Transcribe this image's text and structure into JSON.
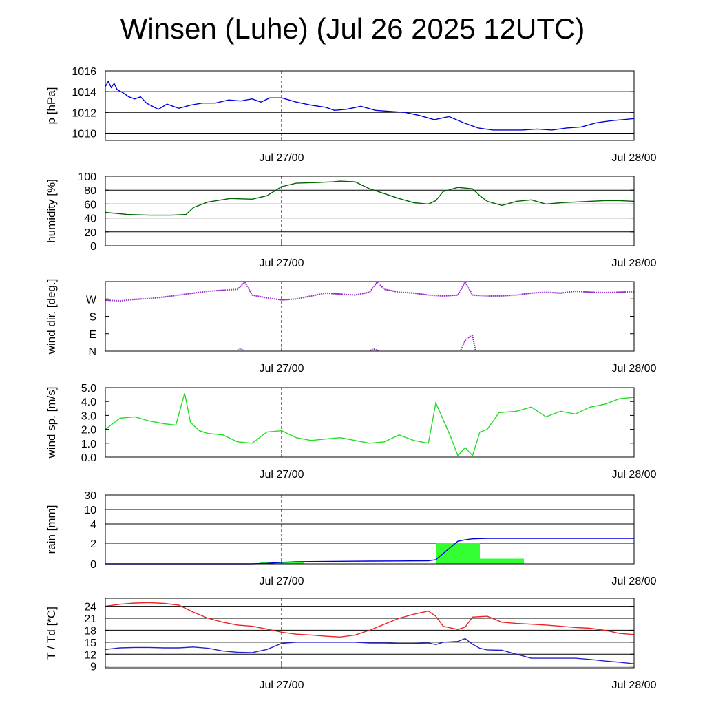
{
  "title": "Winsen (Luhe) (Jul 26 2025 12UTC)",
  "chart_data": [
    {
      "id": "pressure",
      "type": "line",
      "ylabel": "p [hPa]",
      "x_unit": "hours since Jul 26 12UTC",
      "xlim": [
        0,
        36
      ],
      "ylim": [
        1009.3,
        1016
      ],
      "yticks": [
        1010,
        1012,
        1014,
        1016
      ],
      "ytick_labels": [
        "1010",
        "1012",
        "1014",
        "1016"
      ],
      "grid_y": [
        1010,
        1012,
        1014,
        1016
      ],
      "xticks": [
        12,
        36
      ],
      "xtick_labels": [
        "Jul 27/00",
        "Jul 28/00"
      ],
      "series": [
        {
          "color": "#0000dd",
          "x": [
            0,
            0.2,
            0.4,
            0.6,
            0.8,
            1.2,
            1.6,
            2.0,
            2.4,
            2.8,
            3.2,
            3.6,
            4.2,
            5.0,
            5.8,
            6.6,
            7.5,
            8.4,
            9.2,
            10.0,
            10.6,
            11.2,
            12.0,
            13.0,
            14.0,
            15.0,
            15.6,
            16.4,
            17.4,
            18.4,
            19.4,
            20.4,
            21.4,
            22.4,
            23.4,
            24.4,
            25.4,
            26.4,
            27.4,
            28.4,
            29.4,
            30.4,
            31.4,
            32.4,
            33.4,
            34.4,
            35.2,
            36
          ],
          "y": [
            1014.5,
            1015.0,
            1014.4,
            1014.8,
            1014.2,
            1013.9,
            1013.5,
            1013.3,
            1013.5,
            1012.9,
            1012.6,
            1012.3,
            1012.8,
            1012.4,
            1012.7,
            1012.9,
            1012.9,
            1013.2,
            1013.1,
            1013.3,
            1013.0,
            1013.4,
            1013.4,
            1013.0,
            1012.7,
            1012.5,
            1012.2,
            1012.3,
            1012.6,
            1012.2,
            1012.1,
            1012.0,
            1011.7,
            1011.3,
            1011.6,
            1011.0,
            1010.5,
            1010.3,
            1010.3,
            1010.3,
            1010.4,
            1010.3,
            1010.5,
            1010.6,
            1011.0,
            1011.2,
            1011.3,
            1011.4
          ]
        }
      ]
    },
    {
      "id": "humidity",
      "type": "line",
      "ylabel": "humidity [%]",
      "x_unit": "hours since Jul 26 12UTC",
      "xlim": [
        0,
        36
      ],
      "ylim": [
        0,
        100
      ],
      "yticks": [
        0,
        20,
        40,
        60,
        80,
        100
      ],
      "ytick_labels": [
        "0",
        "20",
        "40",
        "60",
        "80",
        "100"
      ],
      "grid_y": [
        0,
        20,
        40,
        60,
        80,
        100
      ],
      "xticks": [
        12,
        36
      ],
      "xtick_labels": [
        "Jul 27/00",
        "Jul 28/00"
      ],
      "series": [
        {
          "color": "#006400",
          "x": [
            0,
            1.5,
            3.0,
            4.5,
            5.5,
            6.0,
            7.0,
            8.5,
            10.0,
            11.0,
            12.0,
            13.0,
            14.5,
            15.5,
            16.0,
            17.0,
            18.0,
            19.0,
            20.0,
            21.0,
            22.0,
            22.5,
            23.0,
            24.0,
            25.0,
            25.5,
            26.0,
            27.0,
            28.0,
            29.0,
            30.0,
            31.0,
            32.0,
            33.0,
            34.0,
            35.0,
            36
          ],
          "y": [
            48,
            45,
            44,
            44,
            45,
            55,
            63,
            68,
            67,
            72,
            85,
            90,
            91,
            92,
            93,
            92,
            82,
            75,
            68,
            62,
            60,
            65,
            78,
            84,
            82,
            72,
            64,
            58,
            64,
            66,
            60,
            62,
            63,
            64,
            65,
            65,
            64
          ]
        }
      ]
    },
    {
      "id": "wind-direction",
      "type": "scatter",
      "ylabel": "wind dir. [deg.]",
      "x_unit": "hours since Jul 26 12UTC",
      "xlim": [
        0,
        36
      ],
      "ylim": [
        0,
        360
      ],
      "yticks": [
        0,
        90,
        180,
        270
      ],
      "ytick_labels": [
        "N",
        "E",
        "S",
        "W"
      ],
      "grid_y": [],
      "xticks": [
        12,
        36
      ],
      "xtick_labels": [
        "Jul 27/00",
        "Jul 28/00"
      ],
      "series": [
        {
          "color": "#9932cc",
          "segments": [
            {
              "x": [
                0,
                1,
                2,
                3,
                4,
                5,
                6,
                7,
                8,
                9,
                9.5
              ],
              "y": [
                264,
                260,
                268,
                272,
                280,
                290,
                300,
                310,
                315,
                320,
                358
              ]
            },
            {
              "x": [
                9.5,
                10,
                11,
                12,
                13,
                14,
                15,
                16,
                17,
                18,
                18.5
              ],
              "y": [
                358,
                290,
                275,
                265,
                270,
                285,
                300,
                295,
                290,
                305,
                358
              ]
            },
            {
              "x": [
                18.5,
                19,
                20,
                21,
                22,
                23,
                24,
                24.5
              ],
              "y": [
                358,
                320,
                305,
                300,
                290,
                285,
                290,
                358
              ]
            },
            {
              "x": [
                24.5,
                25,
                26,
                27,
                28,
                29,
                30,
                31,
                32,
                33,
                34,
                35,
                36
              ],
              "y": [
                358,
                290,
                285,
                286,
                290,
                300,
                305,
                300,
                310,
                305,
                303,
                305,
                308
              ]
            },
            {
              "x": [
                9.0,
                9.2,
                9.4
              ],
              "y": [
                5,
                12,
                5
              ]
            },
            {
              "x": [
                18.0,
                18.3,
                18.6
              ],
              "y": [
                3,
                10,
                3
              ]
            },
            {
              "x": [
                24.2,
                24.5,
                24.8,
                25.0,
                25.2
              ],
              "y": [
                5,
                55,
                75,
                80,
                5
              ]
            }
          ]
        }
      ]
    },
    {
      "id": "wind-speed",
      "type": "line",
      "ylabel": "wind sp. [m/s]",
      "x_unit": "hours since Jul 26 12UTC",
      "xlim": [
        0,
        36
      ],
      "ylim": [
        0,
        5
      ],
      "yticks": [
        0,
        1,
        2,
        3,
        4,
        5
      ],
      "ytick_labels": [
        "0.0",
        "1.0",
        "2.0",
        "3.0",
        "4.0",
        "5.0"
      ],
      "grid_y": [],
      "xticks": [
        12,
        36
      ],
      "xtick_labels": [
        "Jul 27/00",
        "Jul 28/00"
      ],
      "series": [
        {
          "color": "#22dd22",
          "x": [
            0,
            1,
            2,
            3,
            4,
            4.8,
            5.4,
            5.8,
            6.4,
            7,
            8,
            9,
            10,
            11,
            12,
            13,
            14,
            15,
            16,
            17,
            18,
            19,
            20,
            21,
            22,
            22.5,
            23.5,
            24,
            24.5,
            25,
            25.5,
            26,
            26.8,
            28,
            29,
            30,
            31,
            32,
            33,
            34,
            35,
            36
          ],
          "y": [
            2.0,
            2.8,
            2.9,
            2.6,
            2.4,
            2.3,
            4.6,
            2.5,
            1.9,
            1.7,
            1.6,
            1.1,
            1.0,
            1.8,
            1.9,
            1.4,
            1.2,
            1.3,
            1.4,
            1.2,
            1.0,
            1.1,
            1.6,
            1.2,
            1.0,
            3.9,
            1.5,
            0.1,
            0.7,
            0.1,
            1.8,
            2.0,
            3.2,
            3.3,
            3.6,
            2.9,
            3.3,
            3.1,
            3.6,
            3.8,
            4.2,
            4.3
          ]
        }
      ]
    },
    {
      "id": "rain",
      "type": "bar",
      "ylabel": "rain [mm]",
      "x_unit": "hours since Jul 26 12UTC",
      "xlim": [
        0,
        36
      ],
      "yscale": "nonlinear (tick-mapped)",
      "yticks": [
        0,
        2,
        4,
        10,
        30
      ],
      "ytick_labels": [
        "0",
        "2",
        "4",
        "10",
        "30"
      ],
      "grid_y": [
        0,
        2,
        4,
        10,
        30
      ],
      "xticks": [
        12,
        36
      ],
      "xtick_labels": [
        "Jul 27/00",
        "Jul 28/00"
      ],
      "bars": {
        "color": "#33ff33",
        "x_start": [
          10.5,
          22.5,
          25.5
        ],
        "x_end": [
          13.5,
          25.5,
          28.5
        ],
        "values": [
          0.2,
          2.0,
          0.5
        ]
      },
      "series": [
        {
          "color": "#0000dd",
          "x": [
            0,
            10,
            11,
            12,
            13,
            14,
            16,
            18,
            20,
            22,
            22.5,
            23,
            24,
            24.5,
            25,
            26,
            28,
            30,
            32,
            34,
            36
          ],
          "y": [
            0,
            0,
            0.05,
            0.15,
            0.2,
            0.22,
            0.25,
            0.27,
            0.28,
            0.3,
            0.4,
            1.0,
            2.2,
            2.35,
            2.45,
            2.5,
            2.5,
            2.5,
            2.5,
            2.5,
            2.5
          ]
        }
      ]
    },
    {
      "id": "temperature",
      "type": "line",
      "ylabel": "T / Td [*C]",
      "x_unit": "hours since Jul 26 12UTC",
      "xlim": [
        0,
        36
      ],
      "ylim": [
        8.6,
        26
      ],
      "yticks": [
        9,
        12,
        15,
        18,
        21,
        24
      ],
      "ytick_labels": [
        "9",
        "12",
        "15",
        "18",
        "21",
        "24"
      ],
      "grid_y": [
        9,
        12,
        15,
        18,
        21,
        24
      ],
      "xticks": [
        12,
        36
      ],
      "xtick_labels": [
        "Jul 27/00",
        "Jul 28/00"
      ],
      "series": [
        {
          "color": "#ee2222",
          "x": [
            0,
            1,
            2,
            3,
            4,
            5,
            6,
            7,
            8,
            9,
            10,
            11,
            12,
            13,
            14,
            15,
            16,
            17,
            18,
            19,
            20,
            21,
            22,
            22.5,
            23,
            24,
            24.5,
            25,
            26,
            27,
            28,
            29,
            30,
            31,
            32,
            33,
            34,
            35,
            36
          ],
          "y": [
            24.0,
            24.5,
            24.8,
            24.9,
            24.7,
            24.3,
            22.5,
            21.0,
            20.0,
            19.3,
            19.0,
            18.3,
            17.5,
            17.0,
            16.8,
            16.5,
            16.3,
            16.8,
            18.0,
            19.5,
            21.0,
            22.0,
            22.8,
            21.5,
            19.0,
            18.2,
            18.8,
            21.3,
            21.5,
            20.0,
            19.7,
            19.5,
            19.3,
            19.0,
            18.7,
            18.5,
            18.0,
            17.2,
            16.9
          ]
        },
        {
          "color": "#2222cc",
          "x": [
            0,
            1,
            2,
            3,
            4,
            5,
            6,
            7,
            8,
            9,
            10,
            11,
            12,
            13,
            14,
            15,
            16,
            17,
            18,
            19,
            20,
            21,
            22,
            22.5,
            23,
            24,
            24.5,
            25,
            25.5,
            26,
            27,
            28,
            29,
            30,
            31,
            32,
            33,
            34,
            35,
            36
          ],
          "y": [
            13.2,
            13.6,
            13.7,
            13.7,
            13.6,
            13.6,
            13.8,
            13.5,
            12.8,
            12.5,
            12.4,
            13.2,
            14.7,
            15.0,
            15.0,
            15.0,
            15.0,
            15.0,
            14.8,
            14.8,
            14.7,
            14.7,
            14.8,
            14.4,
            15.0,
            15.2,
            15.9,
            14.5,
            13.5,
            13.1,
            13.0,
            12.0,
            11.0,
            11.0,
            11.0,
            11.0,
            10.7,
            10.3,
            10.0,
            9.6
          ]
        }
      ]
    }
  ]
}
